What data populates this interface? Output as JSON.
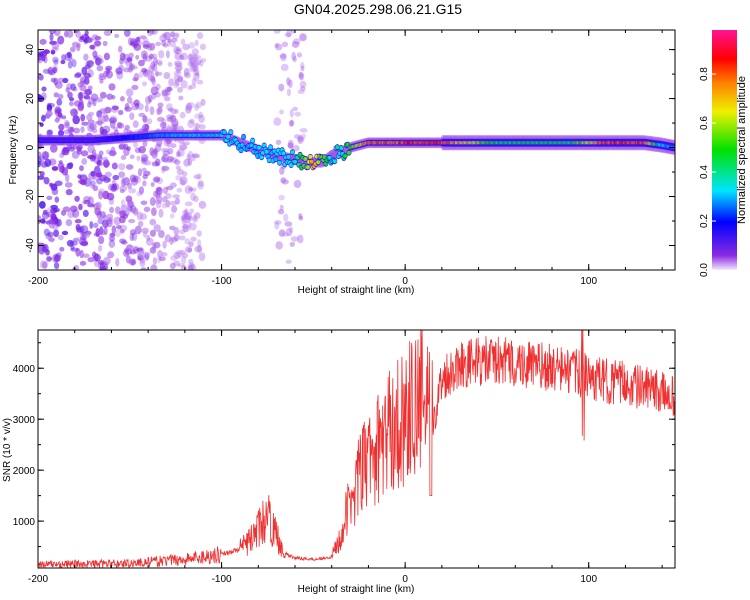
{
  "chart_data": [
    {
      "type": "heatmap",
      "title": "GN04.2025.298.06.21.G15",
      "xlabel": "Height of straight line (km)",
      "ylabel": "Frequency (Hz)",
      "xlim": [
        -200,
        147
      ],
      "ylim": [
        -50,
        48
      ],
      "xticks": [
        -200,
        -100,
        0,
        100
      ],
      "yticks": [
        -40,
        -20,
        0,
        20,
        40
      ],
      "colorbar": {
        "label": "Normalized spectral amplitude",
        "ticks": [
          "0.0",
          "0.2",
          "0.4",
          "0.6",
          "0.8"
        ],
        "range": [
          0,
          1
        ],
        "colormap": [
          "#f2e6ff",
          "#8a2be2",
          "#0000ff",
          "#00e5ff",
          "#00e000",
          "#f0f000",
          "#ff8000",
          "#ff0000",
          "#ff1493"
        ]
      },
      "ridge": {
        "x": [
          -200,
          -170,
          -135,
          -120,
          -100,
          -90,
          -80,
          -70,
          -60,
          -50,
          -45,
          -40,
          -35,
          -30,
          -20,
          -10,
          0,
          20,
          50,
          90,
          110,
          130,
          140,
          147
        ],
        "freq": [
          3,
          3,
          5,
          5,
          5,
          2,
          -1,
          -3,
          -5,
          -6,
          -6,
          -3,
          -2,
          0,
          2,
          2,
          2,
          2,
          2,
          2,
          2,
          2,
          1,
          0
        ],
        "amplitude": [
          0.12,
          0.12,
          0.3,
          0.35,
          0.35,
          0.35,
          0.35,
          0.35,
          0.4,
          0.8,
          0.6,
          0.4,
          0.4,
          0.6,
          0.85,
          0.85,
          0.9,
          0.9,
          0.5,
          0.5,
          0.9,
          0.9,
          0.35,
          0.3
        ]
      },
      "noise_region_km": [
        [
          -200,
          -110
        ],
        [
          -70,
          -55
        ]
      ]
    },
    {
      "type": "line",
      "xlabel": "Height of straight line (km)",
      "ylabel": "SNR (10 * v/v)",
      "xlim": [
        -200,
        147
      ],
      "ylim": [
        80,
        4750
      ],
      "xticks": [
        -200,
        -100,
        0,
        100
      ],
      "yticks": [
        1000,
        2000,
        3000,
        4000
      ],
      "color": "#f03030",
      "series": [
        {
          "name": "SNR",
          "x": [
            -200,
            -150,
            -120,
            -100,
            -90,
            -85,
            -80,
            -75,
            -70,
            -65,
            -60,
            -50,
            -40,
            -35,
            -30,
            -25,
            -20,
            -15,
            -10,
            -5,
            0,
            5,
            10,
            15,
            20,
            30,
            50,
            80,
            95,
            100,
            120,
            147
          ],
          "y": [
            150,
            170,
            250,
            350,
            450,
            600,
            850,
            1100,
            700,
            350,
            280,
            250,
            300,
            700,
            1400,
            1900,
            2200,
            2400,
            2700,
            2900,
            3050,
            3250,
            3400,
            2900,
            3800,
            4100,
            4150,
            4000,
            3900,
            3800,
            3700,
            3450
          ]
        }
      ]
    }
  ]
}
